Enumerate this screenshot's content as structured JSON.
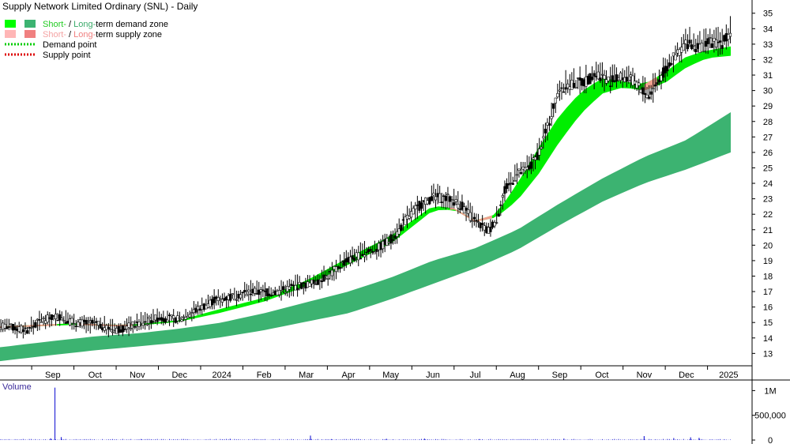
{
  "chart_data": {
    "type": "line",
    "title": "Supply Network Limited Ordinary (SNL) - Daily",
    "legend": {
      "placement": "top-left",
      "items": [
        {
          "id": "demand",
          "parts": [
            {
              "text": "Short-",
              "color": "#22cc22"
            },
            {
              "text": " / ",
              "color": "#000000"
            },
            {
              "text": "Long-",
              "color": "#3aaa6a"
            },
            {
              "text": "term demand zone",
              "color": "#000000"
            }
          ],
          "swatches": [
            "#00ff00",
            "#3cb371"
          ]
        },
        {
          "id": "supply",
          "parts": [
            {
              "text": "Short-",
              "color": "#f4a3a3"
            },
            {
              "text": " / ",
              "color": "#000000"
            },
            {
              "text": "Long-",
              "color": "#f08080"
            },
            {
              "text": "term supply zone",
              "color": "#000000"
            }
          ],
          "swatches": [
            "#ffb6b6",
            "#f08080"
          ]
        },
        {
          "id": "dpoint",
          "parts": [
            {
              "text": "Demand point",
              "color": "#000000"
            }
          ],
          "dotted": "#00cc00"
        },
        {
          "id": "spoint",
          "parts": [
            {
              "text": "Supply point",
              "color": "#000000"
            }
          ],
          "dotted": "#dd0000"
        }
      ]
    },
    "y_ticks": [
      13,
      14,
      15,
      16,
      17,
      18,
      19,
      20,
      21,
      22,
      23,
      24,
      25,
      26,
      27,
      28,
      29,
      30,
      31,
      32,
      33,
      34,
      35
    ],
    "ylim": [
      12.2,
      35.6
    ],
    "x_labels": [
      "Sep",
      "Oct",
      "Nov",
      "Dec",
      "2024",
      "Feb",
      "Mar",
      "Apr",
      "May",
      "Jun",
      "Jul",
      "Aug",
      "Sep",
      "Oct",
      "Nov",
      "Dec",
      "2025"
    ],
    "x_positions": [
      0.5,
      1.5,
      2.5,
      3.5,
      4.5,
      5.5,
      6.5,
      7.5,
      8.5,
      9.5,
      10.5,
      11.5,
      12.5,
      13.5,
      14.5,
      15.5,
      16.5
    ],
    "xlim": [
      -0.75,
      16.55
    ],
    "price_nodes": [
      [
        -0.75,
        14.8
      ],
      [
        -0.1,
        14.5
      ],
      [
        0.2,
        15.1
      ],
      [
        0.6,
        15.4
      ],
      [
        1.0,
        15.0
      ],
      [
        1.5,
        14.9
      ],
      [
        2.0,
        14.5
      ],
      [
        2.5,
        14.9
      ],
      [
        3.0,
        15.3
      ],
      [
        3.5,
        15.2
      ],
      [
        3.9,
        15.8
      ],
      [
        4.3,
        16.4
      ],
      [
        4.8,
        16.7
      ],
      [
        5.2,
        17.0
      ],
      [
        5.7,
        16.9
      ],
      [
        6.2,
        17.3
      ],
      [
        6.6,
        17.5
      ],
      [
        7.0,
        18.0
      ],
      [
        7.4,
        18.9
      ],
      [
        7.8,
        19.4
      ],
      [
        8.2,
        19.8
      ],
      [
        8.6,
        20.6
      ],
      [
        8.9,
        21.8
      ],
      [
        9.2,
        22.6
      ],
      [
        9.5,
        23.1
      ],
      [
        9.9,
        23.0
      ],
      [
        10.2,
        22.5
      ],
      [
        10.5,
        21.5
      ],
      [
        10.8,
        20.9
      ],
      [
        11.0,
        21.6
      ],
      [
        11.2,
        23.5
      ],
      [
        11.5,
        24.6
      ],
      [
        11.8,
        25.0
      ],
      [
        12.0,
        26.0
      ],
      [
        12.2,
        27.5
      ],
      [
        12.5,
        30.2
      ],
      [
        12.8,
        30.4
      ],
      [
        13.1,
        30.6
      ],
      [
        13.4,
        31.1
      ],
      [
        13.7,
        30.6
      ],
      [
        14.0,
        30.9
      ],
      [
        14.3,
        30.5
      ],
      [
        14.6,
        29.6
      ],
      [
        14.9,
        30.9
      ],
      [
        15.2,
        32.1
      ],
      [
        15.5,
        33.1
      ],
      [
        15.8,
        32.8
      ],
      [
        16.1,
        33.1
      ],
      [
        16.35,
        33.1
      ],
      [
        16.55,
        33.9
      ]
    ],
    "short_zone": {
      "color": "#00ee00",
      "supply_color": "#f2a08f",
      "upper": [
        [
          -0.75,
          14.75
        ],
        [
          1.0,
          14.95
        ],
        [
          2.0,
          14.85
        ],
        [
          2.5,
          14.9
        ],
        [
          3.5,
          15.15
        ],
        [
          4.5,
          15.9
        ],
        [
          5.5,
          16.6
        ],
        [
          6.5,
          17.7
        ],
        [
          7.5,
          19.2
        ],
        [
          8.5,
          20.6
        ],
        [
          9.5,
          22.55
        ],
        [
          10.0,
          22.4
        ],
        [
          10.5,
          21.6
        ],
        [
          11.0,
          22.0
        ],
        [
          11.5,
          24.0
        ],
        [
          12.0,
          26.3
        ],
        [
          12.5,
          28.4
        ],
        [
          13.0,
          29.9
        ],
        [
          13.5,
          30.8
        ],
        [
          14.0,
          30.6
        ],
        [
          14.5,
          30.4
        ],
        [
          15.0,
          31.2
        ],
        [
          15.5,
          32.2
        ],
        [
          16.0,
          32.6
        ],
        [
          16.55,
          32.85
        ]
      ],
      "lower": [
        [
          -0.75,
          14.65
        ],
        [
          1.0,
          14.85
        ],
        [
          2.0,
          14.75
        ],
        [
          2.5,
          14.8
        ],
        [
          3.5,
          15.05
        ],
        [
          4.5,
          15.65
        ],
        [
          5.5,
          16.35
        ],
        [
          6.5,
          17.35
        ],
        [
          7.5,
          18.75
        ],
        [
          8.5,
          20.1
        ],
        [
          9.5,
          22.25
        ],
        [
          10.0,
          22.3
        ],
        [
          10.5,
          21.5
        ],
        [
          11.0,
          21.8
        ],
        [
          11.5,
          22.9
        ],
        [
          12.0,
          24.6
        ],
        [
          12.5,
          26.7
        ],
        [
          13.0,
          28.5
        ],
        [
          13.5,
          29.8
        ],
        [
          14.0,
          30.2
        ],
        [
          14.5,
          30.0
        ],
        [
          15.0,
          30.5
        ],
        [
          15.5,
          31.5
        ],
        [
          16.0,
          32.1
        ],
        [
          16.55,
          32.25
        ]
      ],
      "supply_ranges": [
        [
          -0.75,
          0.6
        ],
        [
          1.1,
          2.4
        ],
        [
          9.9,
          10.9
        ],
        [
          14.5,
          14.8
        ]
      ]
    },
    "long_zone": {
      "color": "#3cb371",
      "upper": [
        [
          -0.75,
          13.4
        ],
        [
          0.5,
          13.8
        ],
        [
          1.5,
          14.1
        ],
        [
          2.5,
          14.3
        ],
        [
          3.5,
          14.6
        ],
        [
          4.5,
          15.0
        ],
        [
          5.5,
          15.6
        ],
        [
          6.5,
          16.3
        ],
        [
          7.5,
          17.0
        ],
        [
          8.5,
          17.9
        ],
        [
          9.5,
          19.0
        ],
        [
          10.5,
          19.8
        ],
        [
          11.5,
          21.0
        ],
        [
          12.5,
          22.7
        ],
        [
          13.5,
          24.3
        ],
        [
          14.5,
          25.7
        ],
        [
          15.5,
          26.8
        ],
        [
          16.55,
          28.6
        ]
      ],
      "lower": [
        [
          -0.75,
          12.5
        ],
        [
          0.5,
          12.9
        ],
        [
          1.5,
          13.2
        ],
        [
          2.5,
          13.45
        ],
        [
          3.5,
          13.7
        ],
        [
          4.5,
          14.05
        ],
        [
          5.5,
          14.5
        ],
        [
          6.5,
          15.05
        ],
        [
          7.5,
          15.6
        ],
        [
          8.5,
          16.5
        ],
        [
          9.5,
          17.5
        ],
        [
          10.5,
          18.5
        ],
        [
          11.5,
          19.7
        ],
        [
          12.5,
          21.3
        ],
        [
          13.5,
          22.8
        ],
        [
          14.5,
          24.0
        ],
        [
          15.5,
          24.9
        ],
        [
          16.55,
          26.0
        ]
      ]
    },
    "volume": {
      "label": "Volume",
      "ticks": [
        {
          "value": 1000000,
          "label": "1M"
        },
        {
          "value": 500000,
          "label": "500,000"
        },
        {
          "value": 0,
          "label": "0"
        }
      ],
      "ylim": [
        0,
        1150000
      ],
      "color": "#2b2bd6",
      "spikes": [
        [
          0.55,
          1060000
        ],
        [
          0.45,
          35000
        ],
        [
          0.7,
          60000
        ],
        [
          2.6,
          15000
        ],
        [
          4.7,
          25000
        ],
        [
          6.6,
          90000
        ],
        [
          7.1,
          20000
        ],
        [
          8.4,
          25000
        ],
        [
          9.3,
          30000
        ],
        [
          10.6,
          20000
        ],
        [
          12.6,
          30000
        ],
        [
          14.5,
          80000
        ],
        [
          15.2,
          40000
        ],
        [
          15.6,
          55000
        ],
        [
          15.8,
          45000
        ]
      ]
    }
  }
}
